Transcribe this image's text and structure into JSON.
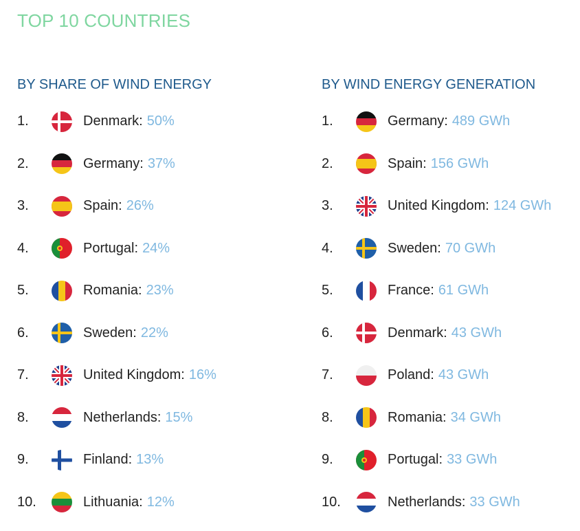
{
  "title": "TOP 10 COUNTRIES",
  "left": {
    "heading": "BY SHARE OF WIND ENERGY",
    "items": [
      {
        "rank": "1.",
        "country": "Denmark:",
        "value": "50%",
        "flag": "denmark-flag-icon"
      },
      {
        "rank": "2.",
        "country": "Germany:",
        "value": "37%",
        "flag": "germany-flag-icon"
      },
      {
        "rank": "3.",
        "country": "Spain:",
        "value": "26%",
        "flag": "spain-flag-icon"
      },
      {
        "rank": "4.",
        "country": "Portugal:",
        "value": "24%",
        "flag": "portugal-flag-icon"
      },
      {
        "rank": "5.",
        "country": "Romania:",
        "value": "23%",
        "flag": "romania-flag-icon"
      },
      {
        "rank": "6.",
        "country": "Sweden:",
        "value": "22%",
        "flag": "sweden-flag-icon"
      },
      {
        "rank": "7.",
        "country": "United Kingdom:",
        "value": "16%",
        "flag": "united-kingdom-flag-icon"
      },
      {
        "rank": "8.",
        "country": "Netherlands:",
        "value": "15%",
        "flag": "netherlands-flag-icon"
      },
      {
        "rank": "9.",
        "country": "Finland:",
        "value": "13%",
        "flag": "finland-flag-icon"
      },
      {
        "rank": "10.",
        "country": "Lithuania:",
        "value": "12%",
        "flag": "lithuania-flag-icon"
      }
    ]
  },
  "right": {
    "heading": "BY WIND ENERGY GENERATION",
    "items": [
      {
        "rank": "1.",
        "country": "Germany:",
        "value": "489 GWh",
        "flag": "germany-flag-icon"
      },
      {
        "rank": "2.",
        "country": "Spain:",
        "value": "156 GWh",
        "flag": "spain-flag-icon"
      },
      {
        "rank": "3.",
        "country": "United Kingdom:",
        "value": "124 GWh",
        "flag": "united-kingdom-flag-icon"
      },
      {
        "rank": "4.",
        "country": "Sweden:",
        "value": "70 GWh",
        "flag": "sweden-flag-icon"
      },
      {
        "rank": "5.",
        "country": "France:",
        "value": "61 GWh",
        "flag": "france-flag-icon"
      },
      {
        "rank": "6.",
        "country": "Denmark:",
        "value": "43 GWh",
        "flag": "denmark-flag-icon"
      },
      {
        "rank": "7.",
        "country": "Poland:",
        "value": "43 GWh",
        "flag": "poland-flag-icon"
      },
      {
        "rank": "8.",
        "country": "Romania:",
        "value": "34 GWh",
        "flag": "romania-flag-icon"
      },
      {
        "rank": "9.",
        "country": "Portugal:",
        "value": "33 GWh",
        "flag": "portugal-flag-icon"
      },
      {
        "rank": "10.",
        "country": "Netherlands:",
        "value": "33 GWh",
        "flag": "netherlands-flag-icon"
      }
    ]
  },
  "colors": {
    "title": "#7fd6a0",
    "heading": "#1f5a8c",
    "value": "#7fb8e0",
    "text": "#222222"
  }
}
